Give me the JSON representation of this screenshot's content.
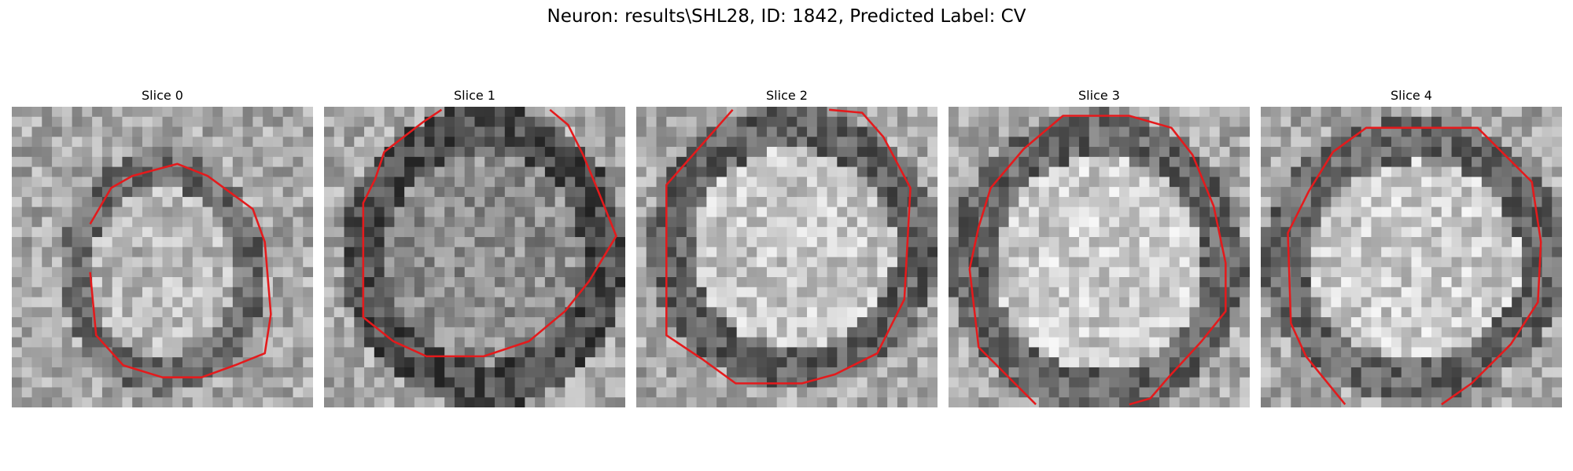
{
  "figure": {
    "title": "Neuron: results\\SHL28, ID: 1842, Predicted Label: CV"
  },
  "contour_color": "#e41a1c",
  "grid_size": 30,
  "panels": [
    {
      "label": "Slice 0",
      "seed": 11,
      "center_brightness": 0.72,
      "ring_darkness": 0.42,
      "ring_x": 0.5,
      "ring_y": 0.55,
      "ring_rx": 0.3,
      "ring_ry": 0.36,
      "contour": [
        [
          0.26,
          0.39
        ],
        [
          0.33,
          0.27
        ],
        [
          0.4,
          0.23
        ],
        [
          0.55,
          0.19
        ],
        [
          0.65,
          0.23
        ],
        [
          0.8,
          0.34
        ],
        [
          0.84,
          0.45
        ],
        [
          0.86,
          0.69
        ],
        [
          0.84,
          0.82
        ],
        [
          0.74,
          0.86
        ],
        [
          0.63,
          0.9
        ],
        [
          0.5,
          0.9
        ],
        [
          0.37,
          0.86
        ],
        [
          0.28,
          0.76
        ],
        [
          0.26,
          0.55
        ]
      ]
    },
    {
      "label": "Slice 1",
      "seed": 23,
      "center_brightness": 0.56,
      "ring_darkness": 0.3,
      "ring_x": 0.53,
      "ring_y": 0.5,
      "ring_rx": 0.42,
      "ring_ry": 0.45,
      "contour": [
        [
          0.39,
          0.01
        ],
        [
          0.33,
          0.05
        ],
        [
          0.2,
          0.15
        ],
        [
          0.17,
          0.24
        ],
        [
          0.13,
          0.32
        ],
        [
          0.13,
          0.7
        ],
        [
          0.23,
          0.78
        ],
        [
          0.34,
          0.83
        ],
        [
          0.53,
          0.83
        ],
        [
          0.68,
          0.78
        ],
        [
          0.8,
          0.68
        ],
        [
          0.88,
          0.58
        ],
        [
          0.97,
          0.43
        ],
        [
          0.91,
          0.28
        ],
        [
          0.86,
          0.16
        ],
        [
          0.81,
          0.06
        ],
        [
          0.75,
          0.01
        ]
      ]
    },
    {
      "label": "Slice 2",
      "seed": 37,
      "center_brightness": 0.78,
      "ring_darkness": 0.38,
      "ring_x": 0.52,
      "ring_y": 0.47,
      "ring_rx": 0.43,
      "ring_ry": 0.42,
      "contour": [
        [
          0.32,
          0.01
        ],
        [
          0.1,
          0.26
        ],
        [
          0.1,
          0.76
        ],
        [
          0.22,
          0.84
        ],
        [
          0.33,
          0.92
        ],
        [
          0.55,
          0.92
        ],
        [
          0.66,
          0.89
        ],
        [
          0.8,
          0.82
        ],
        [
          0.89,
          0.64
        ],
        [
          0.91,
          0.27
        ],
        [
          0.82,
          0.1
        ],
        [
          0.75,
          0.02
        ],
        [
          0.64,
          0.01
        ]
      ]
    },
    {
      "label": "Slice 3",
      "seed": 51,
      "center_brightness": 0.8,
      "ring_darkness": 0.4,
      "ring_x": 0.5,
      "ring_y": 0.52,
      "ring_rx": 0.44,
      "ring_ry": 0.45,
      "contour": [
        [
          0.29,
          0.99
        ],
        [
          0.22,
          0.92
        ],
        [
          0.1,
          0.8
        ],
        [
          0.07,
          0.54
        ],
        [
          0.1,
          0.4
        ],
        [
          0.14,
          0.27
        ],
        [
          0.25,
          0.14
        ],
        [
          0.38,
          0.03
        ],
        [
          0.6,
          0.03
        ],
        [
          0.74,
          0.07
        ],
        [
          0.81,
          0.16
        ],
        [
          0.88,
          0.33
        ],
        [
          0.92,
          0.52
        ],
        [
          0.92,
          0.68
        ],
        [
          0.84,
          0.78
        ],
        [
          0.73,
          0.9
        ],
        [
          0.67,
          0.97
        ],
        [
          0.6,
          0.99
        ]
      ]
    },
    {
      "label": "Slice 4",
      "seed": 67,
      "center_brightness": 0.8,
      "ring_darkness": 0.4,
      "ring_x": 0.51,
      "ring_y": 0.51,
      "ring_rx": 0.45,
      "ring_ry": 0.42,
      "contour": [
        [
          0.28,
          0.99
        ],
        [
          0.15,
          0.83
        ],
        [
          0.1,
          0.72
        ],
        [
          0.09,
          0.42
        ],
        [
          0.16,
          0.28
        ],
        [
          0.24,
          0.15
        ],
        [
          0.35,
          0.07
        ],
        [
          0.72,
          0.07
        ],
        [
          0.9,
          0.25
        ],
        [
          0.93,
          0.45
        ],
        [
          0.92,
          0.65
        ],
        [
          0.83,
          0.79
        ],
        [
          0.7,
          0.92
        ],
        [
          0.6,
          0.99
        ]
      ]
    }
  ]
}
